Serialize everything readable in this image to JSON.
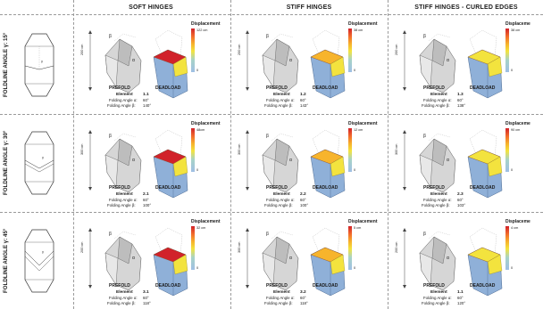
{
  "headers": {
    "soft": "SOFT HINGES",
    "stiff": "STIFF HINGES",
    "curled": "STIFF HINGES - CURLED EDGES"
  },
  "rows": [
    {
      "label": "FOLDLINE ANGLE γ: 15°"
    },
    {
      "label": "FOLDLINE ANGLE γ: 30°"
    },
    {
      "label": "FOLDLINE ANGLE γ: 45°"
    }
  ],
  "common": {
    "prefold": "PREFOLD",
    "deadload": "DEADLOAD",
    "element": "Element",
    "fa_alpha": "Folding Angle α:",
    "fa_beta": "Folding Angle β:",
    "displacement": "Displacement",
    "displacement_short": "Displaceme",
    "dim_200": "200 cm",
    "dim_300": "300 cm",
    "zero": "0",
    "beta": "β",
    "alpha": "α",
    "gamma": "γ"
  },
  "cells": [
    {
      "id": "1.1",
      "alpha": "60°",
      "beta": "140°",
      "max": "122 cm",
      "dim": "200 cm",
      "disp": "Displacement"
    },
    {
      "id": "1.2",
      "alpha": "60°",
      "beta": "143°",
      "max": "38 cm",
      "dim": "200 cm",
      "disp": "Displacement"
    },
    {
      "id": "1.3",
      "alpha": "60°",
      "beta": "138°",
      "max": "38 cm",
      "dim": "200 cm",
      "disp": "Displaceme"
    },
    {
      "id": "2.1",
      "alpha": "60°",
      "beta": "100°",
      "max": "48cm",
      "dim": "300 cm",
      "disp": "Displacement"
    },
    {
      "id": "2.2",
      "alpha": "60°",
      "beta": "100°",
      "max": "12 cm",
      "dim": "300 cm",
      "disp": "Displacement"
    },
    {
      "id": "2.3",
      "alpha": "60°",
      "beta": "103°",
      "max": "90 cm",
      "dim": "300 cm",
      "disp": "Displaceme"
    },
    {
      "id": "3.1",
      "alpha": "60°",
      "beta": "118°",
      "max": "32 cm",
      "dim": "200 cm",
      "disp": "Displacement"
    },
    {
      "id": "3.2",
      "alpha": "60°",
      "beta": "118°",
      "max": "5 cm",
      "dim": "300 cm",
      "disp": "Displacement"
    },
    {
      "id": "1.1",
      "alpha": "60°",
      "beta": "120°",
      "max": "4 cm",
      "dim": "200 cm",
      "disp": "Displaceme"
    }
  ],
  "colors": {
    "scale_top": "#d1222a",
    "scale_mid": "#f3e33e",
    "scale_bottom": "#9fbfe4",
    "surface_blue": "#8fb0d8",
    "divider": "#9a9a9a"
  }
}
